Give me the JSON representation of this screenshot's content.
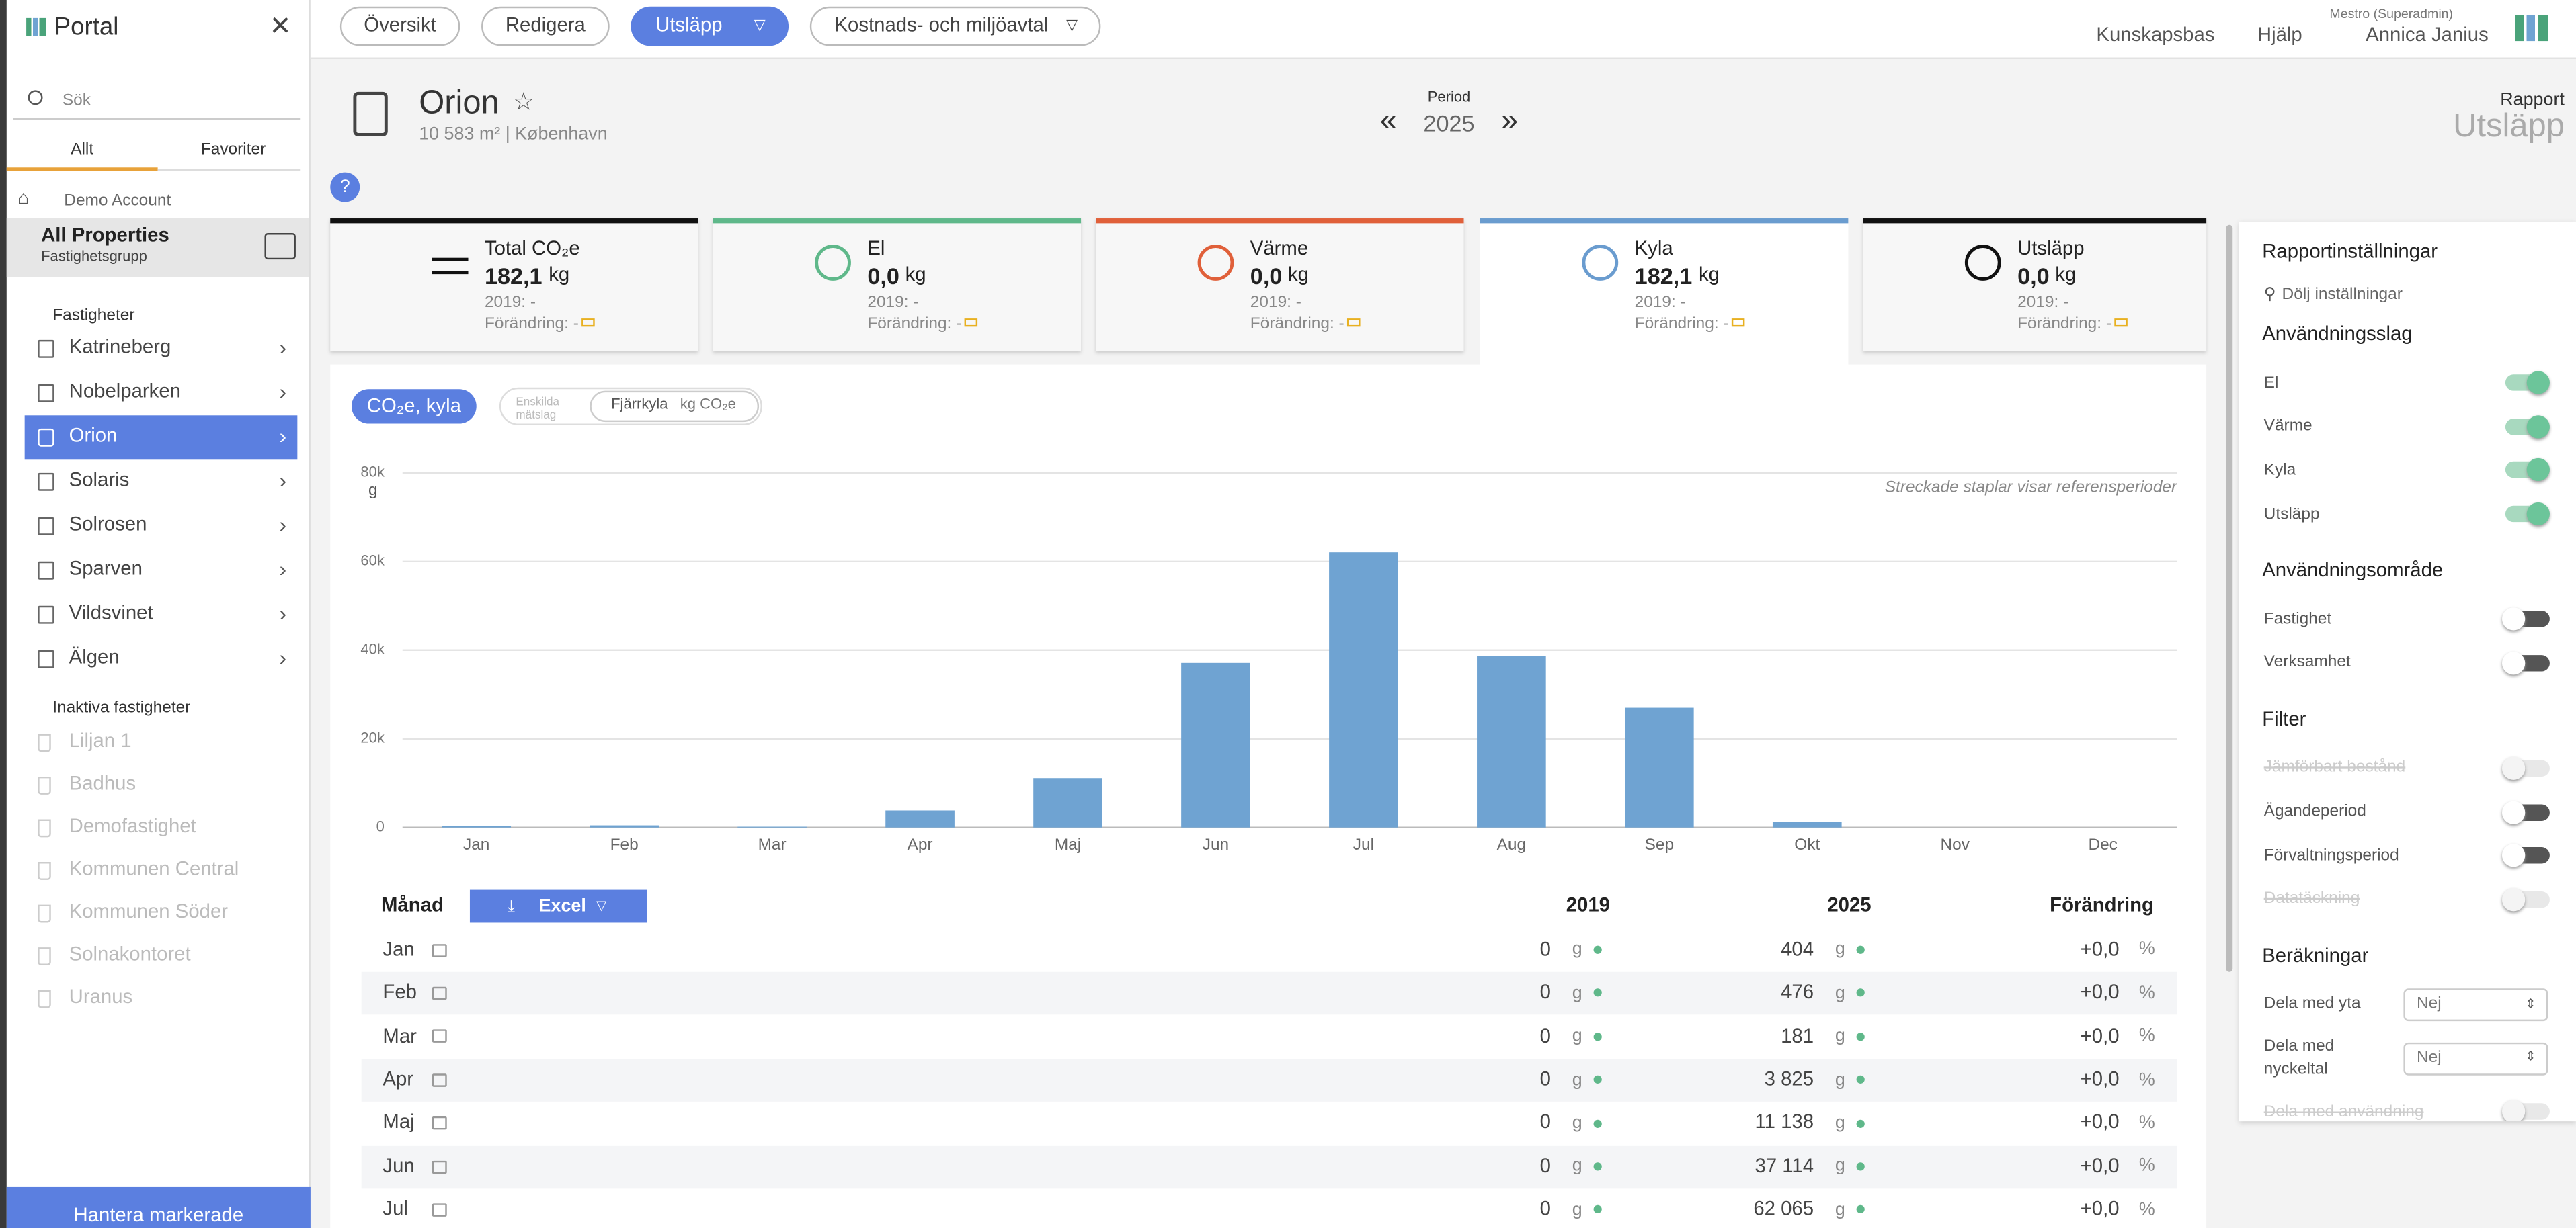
{
  "topbar": {
    "tabs": [
      "Översikt",
      "Redigera",
      "Utsläpp",
      "Kostnads- och miljöavtal"
    ],
    "active_tab": 2,
    "links": [
      "Kunskapsbas",
      "Hjälp"
    ],
    "user_role": "Mestro (Superadmin)",
    "user_name": "Annica Janius"
  },
  "sidebar": {
    "title": "Portal",
    "search_placeholder": "Sök",
    "tabs": [
      "Allt",
      "Favoriter"
    ],
    "breadcrumb": "Demo Account",
    "group_name": "All Properties",
    "group_type": "Fastighetsgrupp",
    "section": "Fastigheter",
    "properties": [
      "Katrineberg",
      "Nobelparken",
      "Orion",
      "Solaris",
      "Solrosen",
      "Sparven",
      "Vildsvinet",
      "Älgen"
    ],
    "selected": 2,
    "inactive_section": "Inaktiva fastigheter",
    "inactive": [
      "Liljan 1",
      "Badhus",
      "Demofastighet",
      "Kommunen Central",
      "Kommunen Söder",
      "Solnakontoret",
      "Uranus"
    ],
    "footer_button": "Hantera markerade"
  },
  "header": {
    "name": "Orion",
    "info": "10 583 m² | København",
    "period_label": "Period",
    "period": "2025",
    "report_label": "Rapport",
    "report": "Utsläpp",
    "help": "?"
  },
  "cards": [
    {
      "title": "Total CO₂e",
      "value": "182,1",
      "unit": "kg",
      "prev": "2019: -",
      "change": "Förändring: -",
      "color": "#111111"
    },
    {
      "title": "El",
      "value": "0,0",
      "unit": "kg",
      "prev": "2019: -",
      "change": "Förändring: -",
      "color": "#5fb88a"
    },
    {
      "title": "Värme",
      "value": "0,0",
      "unit": "kg",
      "prev": "2019: -",
      "change": "Förändring: -",
      "color": "#e0603a"
    },
    {
      "title": "Kyla",
      "value": "182,1",
      "unit": "kg",
      "prev": "2019: -",
      "change": "Förändring: -",
      "color": "#6a9ccf"
    },
    {
      "title": "Utsläpp",
      "value": "0,0",
      "unit": "kg",
      "prev": "2019: -",
      "change": "Förändring: -",
      "color": "#111111"
    }
  ],
  "selected_card": 3,
  "chart_controls": {
    "pill": "CO₂e, kyla",
    "toggle": "Enskilda mätslag",
    "series_label": "Fjärrkyla",
    "series_unit": "kg CO₂e"
  },
  "chart_data": {
    "type": "bar",
    "y_label": "g",
    "annotation": "Streckade staplar visar referensperioder",
    "categories": [
      "Jan",
      "Feb",
      "Mar",
      "Apr",
      "Maj",
      "Jun",
      "Jul",
      "Aug",
      "Sep",
      "Okt",
      "Nov",
      "Dec"
    ],
    "values": [
      404,
      476,
      181,
      3825,
      11138,
      37114,
      62065,
      38700,
      27000,
      1197,
      0,
      0
    ],
    "color": "#6fa3d2",
    "ylim": [
      0,
      80000
    ],
    "yticks": [
      0,
      {
        "value": 20000,
        "label": "20k"
      },
      {
        "value": 40000,
        "label": "40k"
      },
      {
        "value": 60000,
        "label": "60k"
      },
      {
        "value": 80000,
        "label": "80k"
      }
    ],
    "grid": true
  },
  "table": {
    "headers": [
      "Månad",
      "2019",
      "2025",
      "Förändring"
    ],
    "export": "Excel",
    "rows": [
      [
        "Jan",
        "0",
        "g",
        "404",
        "g",
        "+0,0",
        "%"
      ],
      [
        "Feb",
        "0",
        "g",
        "476",
        "g",
        "+0,0",
        "%"
      ],
      [
        "Mar",
        "0",
        "g",
        "181",
        "g",
        "+0,0",
        "%"
      ],
      [
        "Apr",
        "0",
        "g",
        "3 825",
        "g",
        "+0,0",
        "%"
      ],
      [
        "Maj",
        "0",
        "g",
        "11 138",
        "g",
        "+0,0",
        "%"
      ],
      [
        "Jun",
        "0",
        "g",
        "37 114",
        "g",
        "+0,0",
        "%"
      ],
      [
        "Jul",
        "0",
        "g",
        "62 065",
        "g",
        "+0,0",
        "%"
      ]
    ]
  },
  "settings": {
    "title": "Rapportinställningar",
    "hide": "Dölj inställningar",
    "sections": [
      {
        "title": "Användningsslag",
        "items": [
          {
            "label": "El",
            "on": true
          },
          {
            "label": "Värme",
            "on": true
          },
          {
            "label": "Kyla",
            "on": true
          },
          {
            "label": "Utsläpp",
            "on": true
          }
        ]
      },
      {
        "title": "Användningsområde",
        "items": [
          {
            "label": "Fastighet",
            "on": false
          },
          {
            "label": "Verksamhet",
            "on": false
          }
        ]
      },
      {
        "title": "Filter",
        "items": [
          {
            "label": "Jämförbart bestånd",
            "on": false,
            "disabled": true
          },
          {
            "label": "Ägandeperiod",
            "on": false
          },
          {
            "label": "Förvaltningsperiod",
            "on": false
          },
          {
            "label": "Datatäckning",
            "on": false,
            "disabled": true
          }
        ]
      },
      {
        "title": "Beräkningar",
        "items": [
          {
            "label": "Dela med yta",
            "select": "Nej"
          },
          {
            "label": "Dela med nyckeltal",
            "select": "Nej"
          },
          {
            "label": "Dela med användning",
            "on": false,
            "disabled": true
          }
        ]
      }
    ]
  }
}
